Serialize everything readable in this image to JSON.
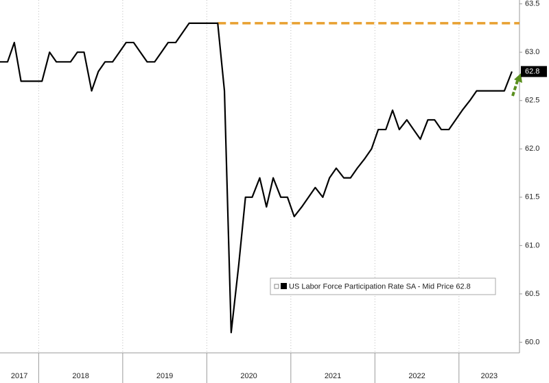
{
  "chart_data": {
    "type": "line",
    "x": [
      2017.54,
      2017.63,
      2017.71,
      2017.79,
      2017.88,
      2017.96,
      2018.04,
      2018.13,
      2018.21,
      2018.29,
      2018.38,
      2018.46,
      2018.54,
      2018.63,
      2018.71,
      2018.79,
      2018.88,
      2018.96,
      2019.04,
      2019.13,
      2019.21,
      2019.29,
      2019.38,
      2019.46,
      2019.54,
      2019.63,
      2019.71,
      2019.79,
      2019.88,
      2019.96,
      2020.04,
      2020.13,
      2020.21,
      2020.29,
      2020.38,
      2020.46,
      2020.54,
      2020.63,
      2020.71,
      2020.79,
      2020.88,
      2020.96,
      2021.04,
      2021.13,
      2021.21,
      2021.29,
      2021.38,
      2021.46,
      2021.54,
      2021.63,
      2021.71,
      2021.79,
      2021.88,
      2021.96,
      2022.04,
      2022.13,
      2022.21,
      2022.29,
      2022.38,
      2022.46,
      2022.54,
      2022.63,
      2022.71,
      2022.79,
      2022.88,
      2022.96,
      2023.04,
      2023.13,
      2023.21,
      2023.29,
      2023.38,
      2023.46,
      2023.54,
      2023.63
    ],
    "series": [
      {
        "name": "US Labor Force Participation Rate SA - Mid Price",
        "color": "#000000",
        "values": [
          62.9,
          62.9,
          63.1,
          62.7,
          62.7,
          62.7,
          62.7,
          63.0,
          62.9,
          62.9,
          62.9,
          63.0,
          63.0,
          62.6,
          62.8,
          62.9,
          62.9,
          63.0,
          63.1,
          63.1,
          63.0,
          62.9,
          62.9,
          63.0,
          63.1,
          63.1,
          63.2,
          63.3,
          63.3,
          63.3,
          63.3,
          63.3,
          62.6,
          60.1,
          60.8,
          61.5,
          61.5,
          61.7,
          61.4,
          61.7,
          61.5,
          61.5,
          61.3,
          61.4,
          61.5,
          61.6,
          61.5,
          61.7,
          61.8,
          61.7,
          61.7,
          61.8,
          61.9,
          62.0,
          62.2,
          62.2,
          62.4,
          62.2,
          62.3,
          62.2,
          62.1,
          62.3,
          62.3,
          62.2,
          62.2,
          62.3,
          62.4,
          62.5,
          62.6,
          62.6,
          62.6,
          62.6,
          62.6,
          62.8
        ]
      }
    ],
    "reference_line": {
      "value": 63.3,
      "start_x": 2020.13,
      "color": "#e8a030"
    },
    "xlim": [
      2017.54,
      2023.72
    ],
    "xticks": [
      2017,
      2018,
      2019,
      2020,
      2021,
      2022,
      2023
    ],
    "ylim": [
      59.89,
      63.54
    ],
    "yticks": [
      {
        "value": 60,
        "label": "60.0"
      },
      60.5,
      {
        "value": 61,
        "label": "61.0"
      },
      61.5,
      {
        "value": 62,
        "label": "62.0"
      },
      62.5,
      {
        "value": 63,
        "label": "63.0"
      },
      63.5
    ],
    "grid": "x"
  }
}
